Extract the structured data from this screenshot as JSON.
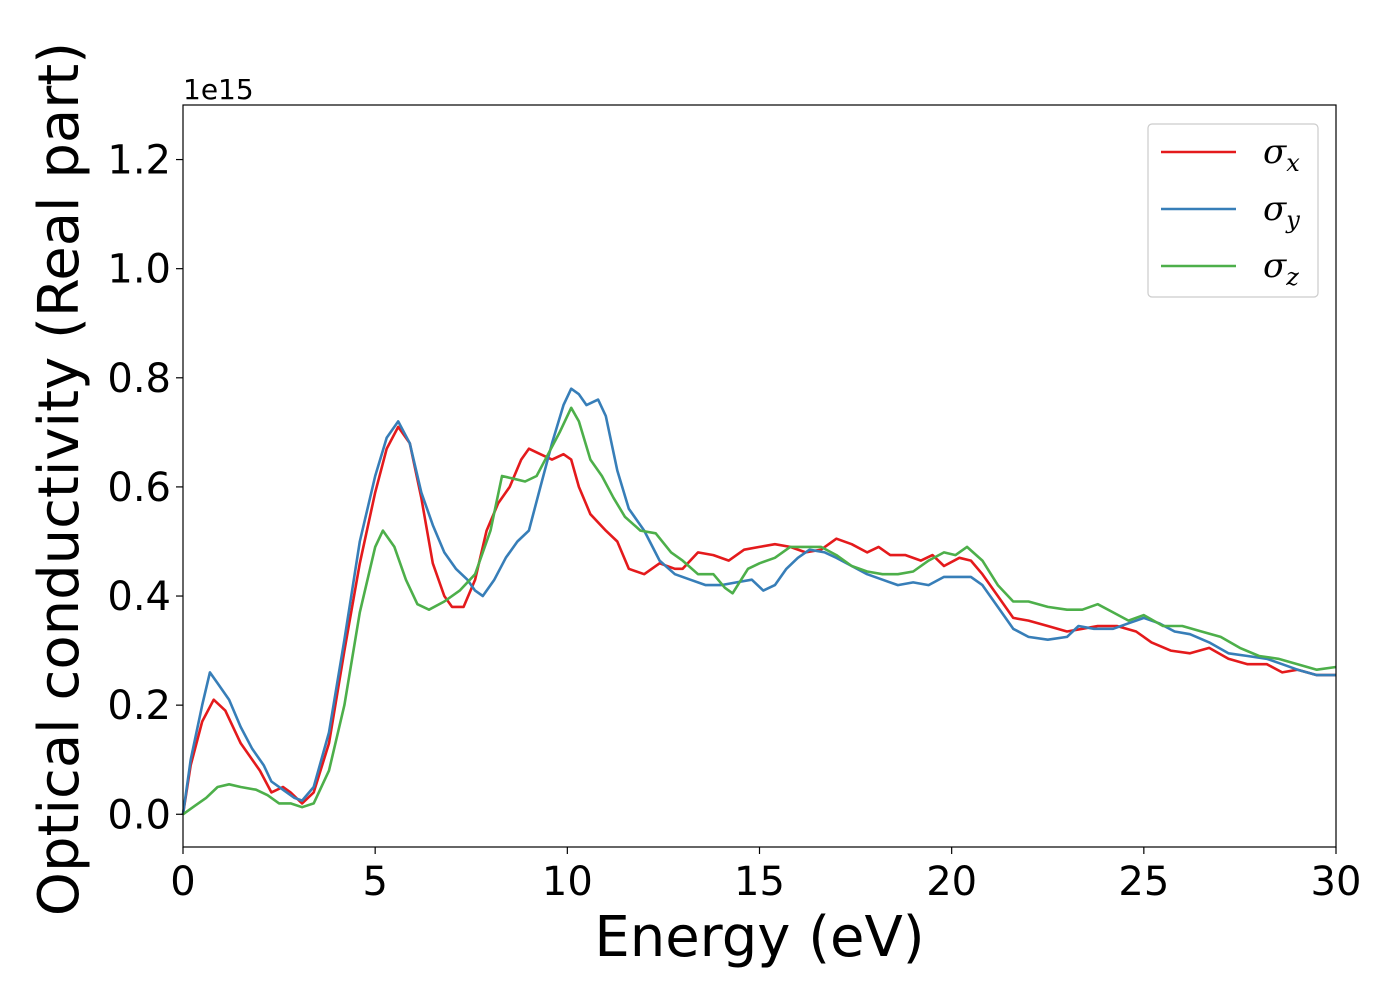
{
  "chart_data": {
    "type": "line",
    "xlabel": "Energy (eV)",
    "ylabel": "Optical conductivity (Real part)",
    "y_offset_label": "1e15",
    "xlim": [
      0,
      30
    ],
    "ylim": [
      -0.06,
      1.3
    ],
    "x_ticks": [
      0,
      5,
      10,
      15,
      20,
      25,
      30
    ],
    "x_tick_labels": [
      "0",
      "5",
      "10",
      "15",
      "20",
      "25",
      "30"
    ],
    "y_ticks": [
      0.0,
      0.2,
      0.4,
      0.6,
      0.8,
      1.0,
      1.2
    ],
    "y_tick_labels": [
      "0.0",
      "0.2",
      "0.4",
      "0.6",
      "0.8",
      "1.0",
      "1.2"
    ],
    "grid": false,
    "legend_position": "top-right",
    "series": [
      {
        "name": "σx",
        "name_base": "σ",
        "name_sub": "x",
        "color": "#e41a1c",
        "points": [
          [
            0,
            0
          ],
          [
            0.2,
            0.09
          ],
          [
            0.5,
            0.17
          ],
          [
            0.8,
            0.21
          ],
          [
            1.1,
            0.19
          ],
          [
            1.5,
            0.13
          ],
          [
            2.0,
            0.08
          ],
          [
            2.3,
            0.04
          ],
          [
            2.6,
            0.05
          ],
          [
            2.8,
            0.04
          ],
          [
            3.1,
            0.02
          ],
          [
            3.4,
            0.04
          ],
          [
            3.8,
            0.13
          ],
          [
            4.2,
            0.3
          ],
          [
            4.6,
            0.46
          ],
          [
            5.0,
            0.59
          ],
          [
            5.3,
            0.67
          ],
          [
            5.6,
            0.71
          ],
          [
            5.9,
            0.68
          ],
          [
            6.2,
            0.58
          ],
          [
            6.5,
            0.46
          ],
          [
            6.8,
            0.4
          ],
          [
            7.0,
            0.38
          ],
          [
            7.3,
            0.38
          ],
          [
            7.6,
            0.43
          ],
          [
            7.9,
            0.52
          ],
          [
            8.2,
            0.57
          ],
          [
            8.5,
            0.6
          ],
          [
            8.8,
            0.65
          ],
          [
            9.0,
            0.67
          ],
          [
            9.3,
            0.66
          ],
          [
            9.6,
            0.65
          ],
          [
            9.9,
            0.66
          ],
          [
            10.1,
            0.65
          ],
          [
            10.3,
            0.6
          ],
          [
            10.6,
            0.55
          ],
          [
            11.0,
            0.52
          ],
          [
            11.3,
            0.5
          ],
          [
            11.6,
            0.45
          ],
          [
            12.0,
            0.44
          ],
          [
            12.4,
            0.46
          ],
          [
            12.8,
            0.45
          ],
          [
            13.0,
            0.45
          ],
          [
            13.4,
            0.48
          ],
          [
            13.8,
            0.475
          ],
          [
            14.2,
            0.465
          ],
          [
            14.6,
            0.485
          ],
          [
            15.0,
            0.49
          ],
          [
            15.4,
            0.495
          ],
          [
            15.8,
            0.49
          ],
          [
            16.2,
            0.48
          ],
          [
            16.6,
            0.485
          ],
          [
            17.0,
            0.505
          ],
          [
            17.4,
            0.495
          ],
          [
            17.8,
            0.48
          ],
          [
            18.1,
            0.49
          ],
          [
            18.4,
            0.475
          ],
          [
            18.8,
            0.475
          ],
          [
            19.2,
            0.465
          ],
          [
            19.5,
            0.475
          ],
          [
            19.8,
            0.455
          ],
          [
            20.2,
            0.47
          ],
          [
            20.5,
            0.465
          ],
          [
            20.8,
            0.44
          ],
          [
            21.2,
            0.4
          ],
          [
            21.6,
            0.36
          ],
          [
            22.0,
            0.355
          ],
          [
            22.5,
            0.345
          ],
          [
            23.0,
            0.335
          ],
          [
            23.4,
            0.34
          ],
          [
            23.8,
            0.345
          ],
          [
            24.3,
            0.345
          ],
          [
            24.8,
            0.335
          ],
          [
            25.2,
            0.315
          ],
          [
            25.7,
            0.3
          ],
          [
            26.2,
            0.295
          ],
          [
            26.7,
            0.305
          ],
          [
            27.2,
            0.285
          ],
          [
            27.7,
            0.275
          ],
          [
            28.2,
            0.275
          ],
          [
            28.6,
            0.26
          ],
          [
            29.0,
            0.265
          ],
          [
            29.5,
            0.255
          ],
          [
            30.0,
            0.255
          ]
        ]
      },
      {
        "name": "σy",
        "name_base": "σ",
        "name_sub": "y",
        "color": "#377eb8",
        "points": [
          [
            0,
            0
          ],
          [
            0.2,
            0.1
          ],
          [
            0.5,
            0.2
          ],
          [
            0.7,
            0.26
          ],
          [
            0.9,
            0.24
          ],
          [
            1.2,
            0.21
          ],
          [
            1.5,
            0.16
          ],
          [
            1.8,
            0.12
          ],
          [
            2.1,
            0.09
          ],
          [
            2.3,
            0.06
          ],
          [
            2.6,
            0.045
          ],
          [
            2.9,
            0.03
          ],
          [
            3.1,
            0.025
          ],
          [
            3.4,
            0.05
          ],
          [
            3.8,
            0.15
          ],
          [
            4.2,
            0.32
          ],
          [
            4.6,
            0.5
          ],
          [
            5.0,
            0.62
          ],
          [
            5.3,
            0.69
          ],
          [
            5.6,
            0.72
          ],
          [
            5.9,
            0.68
          ],
          [
            6.2,
            0.59
          ],
          [
            6.5,
            0.53
          ],
          [
            6.8,
            0.48
          ],
          [
            7.1,
            0.45
          ],
          [
            7.4,
            0.43
          ],
          [
            7.6,
            0.41
          ],
          [
            7.8,
            0.4
          ],
          [
            8.1,
            0.43
          ],
          [
            8.4,
            0.47
          ],
          [
            8.7,
            0.5
          ],
          [
            9.0,
            0.52
          ],
          [
            9.3,
            0.6
          ],
          [
            9.6,
            0.68
          ],
          [
            9.9,
            0.75
          ],
          [
            10.1,
            0.78
          ],
          [
            10.3,
            0.77
          ],
          [
            10.5,
            0.75
          ],
          [
            10.8,
            0.76
          ],
          [
            11.0,
            0.73
          ],
          [
            11.3,
            0.63
          ],
          [
            11.6,
            0.56
          ],
          [
            12.0,
            0.52
          ],
          [
            12.4,
            0.465
          ],
          [
            12.8,
            0.44
          ],
          [
            13.2,
            0.43
          ],
          [
            13.6,
            0.42
          ],
          [
            14.0,
            0.42
          ],
          [
            14.4,
            0.425
          ],
          [
            14.8,
            0.43
          ],
          [
            15.1,
            0.41
          ],
          [
            15.4,
            0.42
          ],
          [
            15.7,
            0.45
          ],
          [
            16.0,
            0.47
          ],
          [
            16.3,
            0.485
          ],
          [
            16.7,
            0.48
          ],
          [
            17.0,
            0.47
          ],
          [
            17.4,
            0.455
          ],
          [
            17.8,
            0.44
          ],
          [
            18.2,
            0.43
          ],
          [
            18.6,
            0.42
          ],
          [
            19.0,
            0.425
          ],
          [
            19.4,
            0.42
          ],
          [
            19.8,
            0.435
          ],
          [
            20.1,
            0.435
          ],
          [
            20.5,
            0.435
          ],
          [
            20.8,
            0.42
          ],
          [
            21.2,
            0.38
          ],
          [
            21.6,
            0.34
          ],
          [
            22.0,
            0.325
          ],
          [
            22.5,
            0.32
          ],
          [
            23.0,
            0.325
          ],
          [
            23.3,
            0.345
          ],
          [
            23.7,
            0.34
          ],
          [
            24.2,
            0.34
          ],
          [
            24.6,
            0.35
          ],
          [
            25.0,
            0.36
          ],
          [
            25.4,
            0.35
          ],
          [
            25.8,
            0.335
          ],
          [
            26.2,
            0.33
          ],
          [
            26.7,
            0.315
          ],
          [
            27.2,
            0.295
          ],
          [
            27.7,
            0.29
          ],
          [
            28.2,
            0.285
          ],
          [
            28.6,
            0.275
          ],
          [
            29.0,
            0.265
          ],
          [
            29.5,
            0.255
          ],
          [
            30.0,
            0.255
          ]
        ]
      },
      {
        "name": "σz",
        "name_base": "σ",
        "name_sub": "z",
        "color": "#4daf4a",
        "points": [
          [
            0,
            0
          ],
          [
            0.3,
            0.015
          ],
          [
            0.6,
            0.03
          ],
          [
            0.9,
            0.05
          ],
          [
            1.2,
            0.055
          ],
          [
            1.5,
            0.05
          ],
          [
            1.9,
            0.045
          ],
          [
            2.2,
            0.035
          ],
          [
            2.5,
            0.02
          ],
          [
            2.8,
            0.02
          ],
          [
            3.1,
            0.013
          ],
          [
            3.4,
            0.02
          ],
          [
            3.8,
            0.08
          ],
          [
            4.2,
            0.2
          ],
          [
            4.6,
            0.37
          ],
          [
            5.0,
            0.49
          ],
          [
            5.2,
            0.52
          ],
          [
            5.5,
            0.49
          ],
          [
            5.8,
            0.43
          ],
          [
            6.1,
            0.385
          ],
          [
            6.4,
            0.375
          ],
          [
            6.8,
            0.39
          ],
          [
            7.2,
            0.41
          ],
          [
            7.6,
            0.44
          ],
          [
            8.0,
            0.52
          ],
          [
            8.3,
            0.62
          ],
          [
            8.6,
            0.615
          ],
          [
            8.9,
            0.61
          ],
          [
            9.2,
            0.62
          ],
          [
            9.5,
            0.66
          ],
          [
            9.8,
            0.7
          ],
          [
            10.1,
            0.745
          ],
          [
            10.3,
            0.72
          ],
          [
            10.6,
            0.65
          ],
          [
            10.9,
            0.62
          ],
          [
            11.2,
            0.58
          ],
          [
            11.5,
            0.545
          ],
          [
            11.9,
            0.52
          ],
          [
            12.3,
            0.515
          ],
          [
            12.7,
            0.48
          ],
          [
            13.0,
            0.465
          ],
          [
            13.4,
            0.44
          ],
          [
            13.8,
            0.44
          ],
          [
            14.1,
            0.415
          ],
          [
            14.3,
            0.405
          ],
          [
            14.7,
            0.45
          ],
          [
            15.0,
            0.46
          ],
          [
            15.4,
            0.47
          ],
          [
            15.8,
            0.49
          ],
          [
            16.2,
            0.49
          ],
          [
            16.6,
            0.49
          ],
          [
            17.0,
            0.475
          ],
          [
            17.4,
            0.455
          ],
          [
            17.8,
            0.445
          ],
          [
            18.2,
            0.44
          ],
          [
            18.6,
            0.44
          ],
          [
            19.0,
            0.445
          ],
          [
            19.4,
            0.465
          ],
          [
            19.8,
            0.48
          ],
          [
            20.1,
            0.475
          ],
          [
            20.4,
            0.49
          ],
          [
            20.8,
            0.465
          ],
          [
            21.2,
            0.42
          ],
          [
            21.6,
            0.39
          ],
          [
            22.0,
            0.39
          ],
          [
            22.5,
            0.38
          ],
          [
            23.0,
            0.375
          ],
          [
            23.4,
            0.375
          ],
          [
            23.8,
            0.385
          ],
          [
            24.2,
            0.37
          ],
          [
            24.6,
            0.355
          ],
          [
            25.0,
            0.365
          ],
          [
            25.5,
            0.345
          ],
          [
            26.0,
            0.345
          ],
          [
            26.5,
            0.335
          ],
          [
            27.0,
            0.325
          ],
          [
            27.5,
            0.305
          ],
          [
            28.0,
            0.29
          ],
          [
            28.5,
            0.285
          ],
          [
            29.0,
            0.275
          ],
          [
            29.5,
            0.265
          ],
          [
            30.0,
            0.27
          ]
        ]
      }
    ]
  }
}
